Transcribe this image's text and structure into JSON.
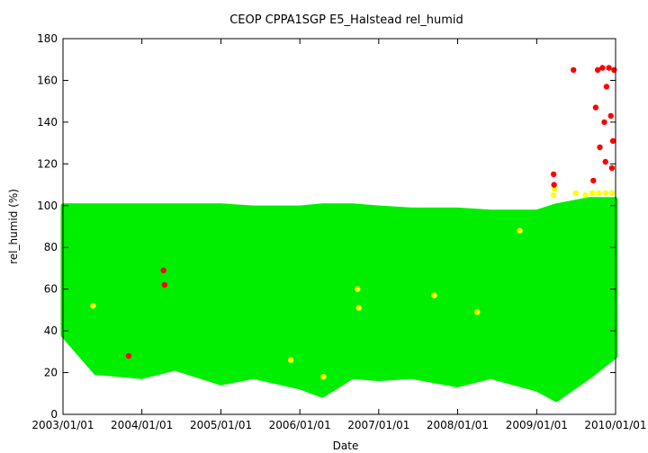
{
  "chart_data": {
    "type": "scatter",
    "title": "CEOP CPPA1SGP E5_Halstead  rel_humid",
    "xlabel": "Date",
    "ylabel": "rel_humid (%)",
    "ylim": [
      0,
      180
    ],
    "yticks": [
      0,
      20,
      40,
      60,
      80,
      100,
      120,
      140,
      160,
      180
    ],
    "xlim": [
      "2003/01/01",
      "2010/01/01"
    ],
    "xticks": [
      "2003/01/01",
      "2004/01/01",
      "2005/01/01",
      "2006/01/01",
      "2007/01/01",
      "2008/01/01",
      "2009/01/01",
      "2010/01/01"
    ],
    "grid": false,
    "legend": "none",
    "colors": {
      "good": "#00ee00",
      "questionable": "#ffff00",
      "bad": "#ff0000"
    },
    "series": [
      {
        "color_key": "good",
        "envelope": [
          {
            "x": "2003/01/01",
            "min": 38,
            "max": 100
          },
          {
            "x": "2003/06/01",
            "min": 20,
            "max": 100
          },
          {
            "x": "2004/01/01",
            "min": 18,
            "max": 100
          },
          {
            "x": "2004/06/01",
            "min": 22,
            "max": 100
          },
          {
            "x": "2005/01/01",
            "min": 15,
            "max": 100
          },
          {
            "x": "2005/06/01",
            "min": 18,
            "max": 99
          },
          {
            "x": "2006/01/01",
            "min": 13,
            "max": 99
          },
          {
            "x": "2006/04/15",
            "min": 9,
            "max": 100
          },
          {
            "x": "2006/09/01",
            "min": 18,
            "max": 100
          },
          {
            "x": "2007/01/01",
            "min": 17,
            "max": 99
          },
          {
            "x": "2007/06/01",
            "min": 18,
            "max": 98
          },
          {
            "x": "2008/01/01",
            "min": 14,
            "max": 98
          },
          {
            "x": "2008/06/01",
            "min": 18,
            "max": 97
          },
          {
            "x": "2009/01/01",
            "min": 12,
            "max": 97
          },
          {
            "x": "2009/04/01",
            "min": 7,
            "max": 100
          },
          {
            "x": "2009/09/01",
            "min": 18,
            "max": 103
          },
          {
            "x": "2010/01/01",
            "min": 28,
            "max": 103
          }
        ]
      },
      {
        "color_key": "questionable",
        "points": [
          {
            "x": "2003/05/20",
            "y": 52
          },
          {
            "x": "2005/11/20",
            "y": 26
          },
          {
            "x": "2006/04/20",
            "y": 18
          },
          {
            "x": "2006/09/25",
            "y": 60
          },
          {
            "x": "2006/10/01",
            "y": 51
          },
          {
            "x": "2007/09/15",
            "y": 57
          },
          {
            "x": "2008/04/01",
            "y": 49
          },
          {
            "x": "2008/10/15",
            "y": 88
          },
          {
            "x": "2009/03/20",
            "y": 105
          },
          {
            "x": "2009/03/25",
            "y": 108
          },
          {
            "x": "2009/07/01",
            "y": 106
          },
          {
            "x": "2009/08/15",
            "y": 105
          },
          {
            "x": "2009/09/15",
            "y": 106
          },
          {
            "x": "2009/10/15",
            "y": 106
          },
          {
            "x": "2009/11/15",
            "y": 106
          },
          {
            "x": "2009/12/15",
            "y": 106
          }
        ]
      },
      {
        "color_key": "bad",
        "points": [
          {
            "x": "2003/11/01",
            "y": 28
          },
          {
            "x": "2004/04/10",
            "y": 69
          },
          {
            "x": "2004/04/15",
            "y": 62
          },
          {
            "x": "2009/03/20",
            "y": 115
          },
          {
            "x": "2009/03/22",
            "y": 110
          },
          {
            "x": "2009/06/20",
            "y": 165
          },
          {
            "x": "2009/09/20",
            "y": 112
          },
          {
            "x": "2009/10/01",
            "y": 147
          },
          {
            "x": "2009/10/10",
            "y": 165
          },
          {
            "x": "2009/10/20",
            "y": 128
          },
          {
            "x": "2009/11/01",
            "y": 166
          },
          {
            "x": "2009/11/10",
            "y": 140
          },
          {
            "x": "2009/11/15",
            "y": 121
          },
          {
            "x": "2009/11/20",
            "y": 157
          },
          {
            "x": "2009/12/01",
            "y": 166
          },
          {
            "x": "2009/12/10",
            "y": 143
          },
          {
            "x": "2009/12/15",
            "y": 118
          },
          {
            "x": "2009/12/20",
            "y": 131
          },
          {
            "x": "2009/12/25",
            "y": 165
          }
        ]
      }
    ]
  }
}
